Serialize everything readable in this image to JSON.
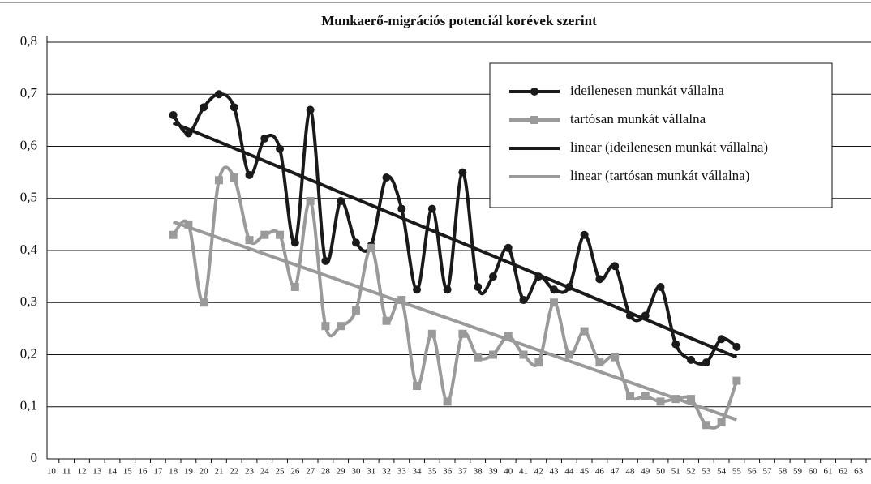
{
  "chart_data": {
    "type": "line",
    "title": "Munkaerő-migrációs potenciál korévek szerint",
    "x": [
      18,
      19,
      20,
      21,
      22,
      23,
      24,
      25,
      26,
      27,
      28,
      29,
      30,
      31,
      32,
      33,
      34,
      35,
      36,
      37,
      38,
      39,
      40,
      41,
      42,
      43,
      44,
      45,
      46,
      47,
      48,
      49,
      50,
      51,
      52,
      53,
      54,
      55
    ],
    "series": [
      {
        "name": "ideilenesen munkát vállalna",
        "color": "#1a1a1a",
        "marker": "circle",
        "values": [
          0.66,
          0.625,
          0.675,
          0.7,
          0.675,
          0.545,
          0.615,
          0.595,
          0.415,
          0.67,
          0.38,
          0.495,
          0.415,
          0.41,
          0.54,
          0.48,
          0.325,
          0.48,
          0.325,
          0.55,
          0.33,
          0.35,
          0.405,
          0.305,
          0.35,
          0.325,
          0.33,
          0.43,
          0.345,
          0.37,
          0.275,
          0.275,
          0.33,
          0.22,
          0.19,
          0.185,
          0.23,
          0.215
        ]
      },
      {
        "name": "tartósan munkát vállalna",
        "color": "#9a9a9a",
        "marker": "square",
        "values": [
          0.43,
          0.45,
          0.3,
          0.535,
          0.54,
          0.42,
          0.43,
          0.43,
          0.33,
          0.495,
          0.255,
          0.255,
          0.285,
          0.405,
          0.265,
          0.305,
          0.14,
          0.24,
          0.11,
          0.24,
          0.195,
          0.2,
          0.235,
          0.2,
          0.185,
          0.3,
          0.2,
          0.245,
          0.185,
          0.195,
          0.12,
          0.12,
          0.11,
          0.115,
          0.115,
          0.065,
          0.07,
          0.15
        ]
      }
    ],
    "trendlines": [
      {
        "name": "linear (ideilenesen munkát vállalna)",
        "color": "#1a1a1a",
        "x": [
          18,
          55
        ],
        "values": [
          0.645,
          0.195
        ]
      },
      {
        "name": "linear (tartósan munkát vállalna)",
        "color": "#9a9a9a",
        "x": [
          18,
          55
        ],
        "values": [
          0.455,
          0.075
        ]
      }
    ],
    "xlim": [
      9.5,
      63.5
    ],
    "xticks": [
      10,
      11,
      12,
      13,
      14,
      15,
      16,
      17,
      18,
      19,
      20,
      21,
      22,
      23,
      24,
      25,
      26,
      27,
      28,
      29,
      30,
      31,
      32,
      33,
      34,
      35,
      36,
      37,
      38,
      39,
      40,
      41,
      42,
      43,
      44,
      45,
      46,
      47,
      48,
      49,
      50,
      51,
      52,
      53,
      54,
      55,
      56,
      57,
      58,
      59,
      60,
      61,
      62,
      63
    ],
    "ylim": [
      0,
      0.8
    ],
    "yticks": [
      0,
      {
        "value": 0.1,
        "label": "0,1"
      },
      {
        "value": 0.2,
        "label": "0,2"
      },
      {
        "value": 0.3,
        "label": "0,3"
      },
      {
        "value": 0.4,
        "label": "0,4"
      },
      {
        "value": 0.5,
        "label": "0,5"
      },
      {
        "value": 0.6,
        "label": "0,6"
      },
      {
        "value": 0.7,
        "label": "0,7"
      },
      {
        "value": 0.8,
        "label": "0,8"
      }
    ],
    "grid": true,
    "legend": "upper right"
  }
}
